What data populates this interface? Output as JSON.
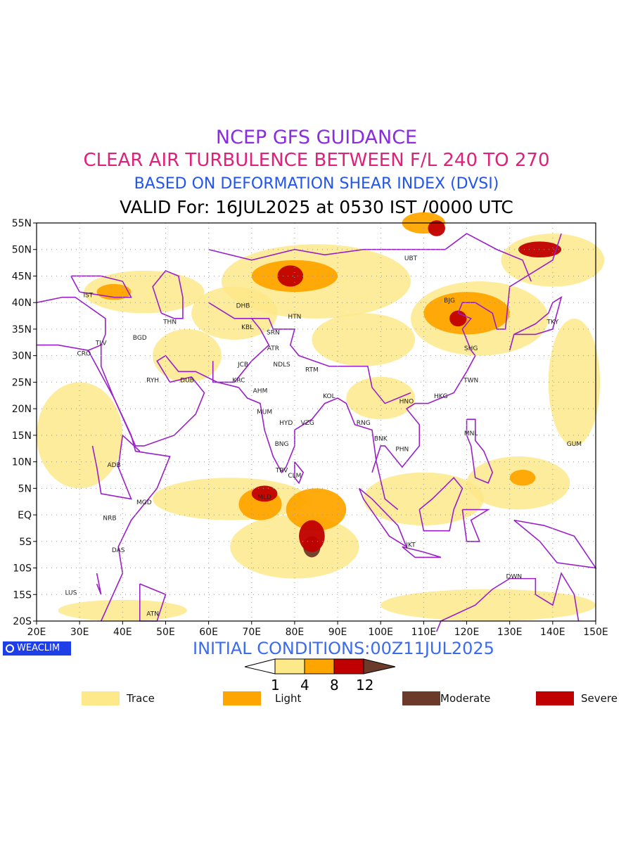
{
  "titles": {
    "line1": "NCEP GFS GUIDANCE",
    "line2": "CLEAR AIR TURBULENCE BETWEEN F/L 240 TO 270",
    "line3": "BASED ON DEFORMATION SHEAR INDEX (DVSI)",
    "line4": "VALID For: 16JUL2025 at 0530 IST /0000 UTC"
  },
  "axes": {
    "x_ticks": [
      "20E",
      "30E",
      "40E",
      "50E",
      "60E",
      "70E",
      "80E",
      "90E",
      "100E",
      "110E",
      "120E",
      "130E",
      "140E",
      "150E"
    ],
    "y_ticks": [
      "55N",
      "50N",
      "45N",
      "40N",
      "35N",
      "30N",
      "25N",
      "20N",
      "15N",
      "10N",
      "5N",
      "EQ",
      "5S",
      "10S",
      "15S",
      "20S"
    ],
    "lon_range": [
      20,
      150
    ],
    "lat_range": [
      -20,
      55
    ]
  },
  "stations": [
    {
      "code": "IST",
      "lon": 32,
      "lat": 41
    },
    {
      "code": "TLV",
      "lon": 35,
      "lat": 32
    },
    {
      "code": "CRO",
      "lon": 31,
      "lat": 30
    },
    {
      "code": "BGD",
      "lon": 44,
      "lat": 33
    },
    {
      "code": "THN",
      "lon": 51,
      "lat": 36
    },
    {
      "code": "RYH",
      "lon": 47,
      "lat": 25
    },
    {
      "code": "DUB",
      "lon": 55,
      "lat": 25
    },
    {
      "code": "DHB",
      "lon": 68,
      "lat": 39
    },
    {
      "code": "HTN",
      "lon": 80,
      "lat": 37
    },
    {
      "code": "KBL",
      "lon": 69,
      "lat": 35
    },
    {
      "code": "SRN",
      "lon": 75,
      "lat": 34
    },
    {
      "code": "ATR",
      "lon": 75,
      "lat": 31
    },
    {
      "code": "JCB",
      "lon": 68,
      "lat": 28
    },
    {
      "code": "NDLS",
      "lon": 77,
      "lat": 28
    },
    {
      "code": "KRC",
      "lon": 67,
      "lat": 25
    },
    {
      "code": "AHM",
      "lon": 72,
      "lat": 23
    },
    {
      "code": "RTM",
      "lon": 84,
      "lat": 27
    },
    {
      "code": "KOL",
      "lon": 88,
      "lat": 22
    },
    {
      "code": "MUM",
      "lon": 73,
      "lat": 19
    },
    {
      "code": "HYD",
      "lon": 78,
      "lat": 17
    },
    {
      "code": "VZG",
      "lon": 83,
      "lat": 17
    },
    {
      "code": "BNG",
      "lon": 77,
      "lat": 13
    },
    {
      "code": "TRV",
      "lon": 77,
      "lat": 8
    },
    {
      "code": "CLM",
      "lon": 80,
      "lat": 7
    },
    {
      "code": "MLD",
      "lon": 73,
      "lat": 3
    },
    {
      "code": "UBT",
      "lon": 107,
      "lat": 48
    },
    {
      "code": "BJG",
      "lon": 116,
      "lat": 40
    },
    {
      "code": "TKY",
      "lon": 140,
      "lat": 36
    },
    {
      "code": "SHG",
      "lon": 121,
      "lat": 31
    },
    {
      "code": "TWN",
      "lon": 121,
      "lat": 25
    },
    {
      "code": "HKG",
      "lon": 114,
      "lat": 22
    },
    {
      "code": "HNO",
      "lon": 106,
      "lat": 21
    },
    {
      "code": "RNG",
      "lon": 96,
      "lat": 17
    },
    {
      "code": "BNK",
      "lon": 100,
      "lat": 14
    },
    {
      "code": "PHN",
      "lon": 105,
      "lat": 12
    },
    {
      "code": "MNL",
      "lon": 121,
      "lat": 15
    },
    {
      "code": "GUM",
      "lon": 145,
      "lat": 13
    },
    {
      "code": "ADB",
      "lon": 38,
      "lat": 9
    },
    {
      "code": "MGD",
      "lon": 45,
      "lat": 2
    },
    {
      "code": "NRB",
      "lon": 37,
      "lat": -1
    },
    {
      "code": "DAS",
      "lon": 39,
      "lat": -7
    },
    {
      "code": "JKT",
      "lon": 107,
      "lat": -6
    },
    {
      "code": "DWN",
      "lon": 131,
      "lat": -12
    },
    {
      "code": "LUS",
      "lon": 28,
      "lat": -15
    },
    {
      "code": "ATN",
      "lon": 47,
      "lat": -19
    }
  ],
  "turbulence_zones": [
    {
      "lon": 72,
      "lat": 2,
      "rx": 5,
      "ry": 3,
      "level": "light"
    },
    {
      "lon": 85,
      "lat": 1,
      "rx": 7,
      "ry": 4,
      "level": "light"
    },
    {
      "lon": 84,
      "lat": -4,
      "rx": 3,
      "ry": 3,
      "level": "severe"
    },
    {
      "lon": 84,
      "lat": -6,
      "rx": 2,
      "ry": 2,
      "level": "moderate"
    },
    {
      "lon": 73,
      "lat": 4,
      "rx": 3,
      "ry": 1.5,
      "level": "severe"
    },
    {
      "lon": 80,
      "lat": -6,
      "rx": 15,
      "ry": 6,
      "level": "trace"
    },
    {
      "lon": 65,
      "lat": 3,
      "rx": 18,
      "ry": 4,
      "level": "trace"
    },
    {
      "lon": 80,
      "lat": 45,
      "rx": 10,
      "ry": 3,
      "level": "light"
    },
    {
      "lon": 79,
      "lat": 45,
      "rx": 3,
      "ry": 2,
      "level": "severe"
    },
    {
      "lon": 85,
      "lat": 44,
      "rx": 22,
      "ry": 7,
      "level": "trace"
    },
    {
      "lon": 110,
      "lat": 55,
      "rx": 5,
      "ry": 2,
      "level": "light"
    },
    {
      "lon": 113,
      "lat": 54,
      "rx": 2,
      "ry": 1.5,
      "level": "severe"
    },
    {
      "lon": 137,
      "lat": 50,
      "rx": 5,
      "ry": 1.5,
      "level": "severe"
    },
    {
      "lon": 140,
      "lat": 48,
      "rx": 12,
      "ry": 5,
      "level": "trace"
    },
    {
      "lon": 120,
      "lat": 38,
      "rx": 10,
      "ry": 4,
      "level": "light"
    },
    {
      "lon": 118,
      "lat": 37,
      "rx": 2,
      "ry": 1.5,
      "level": "severe"
    },
    {
      "lon": 123,
      "lat": 37,
      "rx": 16,
      "ry": 7,
      "level": "trace"
    },
    {
      "lon": 45,
      "lat": 42,
      "rx": 14,
      "ry": 4,
      "level": "trace"
    },
    {
      "lon": 38,
      "lat": 42,
      "rx": 4,
      "ry": 1.5,
      "level": "light"
    },
    {
      "lon": 66,
      "lat": 38,
      "rx": 10,
      "ry": 5,
      "level": "trace"
    },
    {
      "lon": 96,
      "lat": 33,
      "rx": 12,
      "ry": 5,
      "level": "trace"
    },
    {
      "lon": 132,
      "lat": 6,
      "rx": 12,
      "ry": 5,
      "level": "trace"
    },
    {
      "lon": 133,
      "lat": 7,
      "rx": 3,
      "ry": 1.5,
      "level": "light"
    },
    {
      "lon": 110,
      "lat": 3,
      "rx": 14,
      "ry": 5,
      "level": "trace"
    },
    {
      "lon": 125,
      "lat": -17,
      "rx": 25,
      "ry": 3,
      "level": "trace"
    },
    {
      "lon": 40,
      "lat": -18,
      "rx": 15,
      "ry": 2,
      "level": "trace"
    },
    {
      "lon": 30,
      "lat": 15,
      "rx": 10,
      "ry": 10,
      "level": "trace"
    },
    {
      "lon": 145,
      "lat": 25,
      "rx": 6,
      "ry": 12,
      "level": "trace"
    },
    {
      "lon": 55,
      "lat": 30,
      "rx": 8,
      "ry": 5,
      "level": "trace"
    },
    {
      "lon": 100,
      "lat": 22,
      "rx": 8,
      "ry": 4,
      "level": "trace"
    }
  ],
  "footer": {
    "logo_text": "WEACLIM",
    "initial_conditions": "INITIAL CONDITIONS:00Z11JUL2025"
  },
  "colorbar": {
    "bins": [
      "#fde98a",
      "#ffa500",
      "#c00000"
    ],
    "low_end": "#ffffff",
    "high_end": "#6b3a2a",
    "ticks": [
      "1",
      "4",
      "8",
      "12"
    ]
  },
  "legend": [
    {
      "label": "Trace",
      "color": "#fde98a"
    },
    {
      "label": "Light",
      "color": "#ffa500"
    },
    {
      "label": "Moderate",
      "color": "#6b3a2a"
    },
    {
      "label": "Severe",
      "color": "#c00000"
    }
  ],
  "colors": {
    "trace": "#fde98a",
    "light": "#ffa500",
    "moderate": "#6b3a2a",
    "severe": "#c00000",
    "coastline": "#9b1fc9"
  }
}
